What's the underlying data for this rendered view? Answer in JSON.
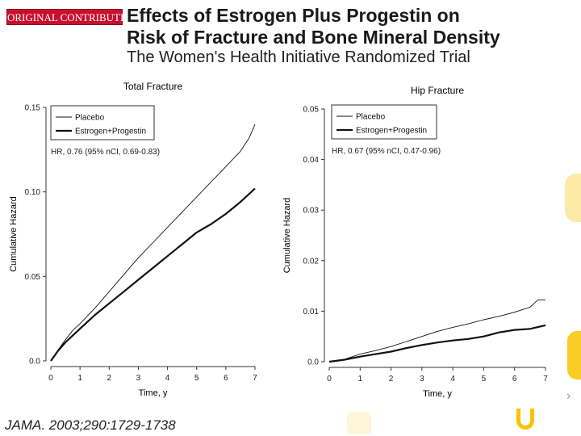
{
  "header": {
    "badge": "ORIGINAL CONTRIBUTION",
    "title_line1": "Effects of Estrogen Plus Progestin on",
    "title_line2": "Risk of Fracture and Bone Mineral Density",
    "subtitle": "The Women's Health Initiative Randomized Trial"
  },
  "citation": "JAMA. 2003;290:1729-1738",
  "nav": {
    "arrow": "›"
  },
  "colors": {
    "badge": "#c8102e",
    "accent": "#f7c400",
    "line": "#111111"
  },
  "chart_data": [
    {
      "type": "line",
      "title": "Total Fracture",
      "xlabel": "Time, y",
      "ylabel": "Cumulative Hazard",
      "xlim": [
        0,
        7
      ],
      "ylim": [
        0,
        0.15
      ],
      "xticks": [
        "0",
        "1",
        "2",
        "3",
        "4",
        "5",
        "6",
        "7"
      ],
      "yticks": [
        "0.0",
        "0.05",
        "0.10",
        "0.15"
      ],
      "legend": "top-left",
      "annotation": "HR, 0.76 (95% nCI, 0.69-0.83)",
      "series": [
        {
          "name": "Placebo",
          "x": [
            0,
            0.25,
            0.5,
            0.75,
            1,
            1.5,
            2,
            2.5,
            3,
            3.5,
            4,
            4.5,
            5,
            5.5,
            6,
            6.5,
            6.8,
            7
          ],
          "y": [
            0,
            0.0065,
            0.0125,
            0.018,
            0.022,
            0.031,
            0.041,
            0.051,
            0.061,
            0.07,
            0.079,
            0.088,
            0.097,
            0.106,
            0.115,
            0.124,
            0.132,
            0.14
          ]
        },
        {
          "name": "Estrogen+Progestin",
          "x": [
            0,
            0.25,
            0.5,
            0.75,
            1,
            1.5,
            2,
            2.5,
            3,
            3.5,
            4,
            4.5,
            5,
            5.5,
            6,
            6.5,
            7
          ],
          "y": [
            0,
            0.006,
            0.011,
            0.015,
            0.019,
            0.027,
            0.034,
            0.041,
            0.048,
            0.055,
            0.062,
            0.069,
            0.076,
            0.081,
            0.087,
            0.094,
            0.102
          ]
        }
      ]
    },
    {
      "type": "line",
      "title": "Hip Fracture",
      "xlabel": "Time, y",
      "ylabel": "Cumulative Hazard",
      "xlim": [
        0,
        7
      ],
      "ylim": [
        0,
        0.05
      ],
      "xticks": [
        "0",
        "1",
        "2",
        "3",
        "4",
        "5",
        "6",
        "7"
      ],
      "yticks": [
        "0.0",
        "0.01",
        "0.02",
        "0.03",
        "0.04",
        "0.05"
      ],
      "legend": "top-left",
      "annotation": "HR, 0.67 (95% nCI, 0.47-0.96)",
      "series": [
        {
          "name": "Placebo",
          "x": [
            0,
            0.5,
            1,
            1.5,
            2,
            2.5,
            3,
            3.5,
            4,
            4.5,
            5,
            5.5,
            6,
            6.5,
            6.75,
            7
          ],
          "y": [
            0,
            0.0005,
            0.0015,
            0.0022,
            0.003,
            0.004,
            0.005,
            0.006,
            0.0068,
            0.0075,
            0.0083,
            0.009,
            0.0098,
            0.0108,
            0.0122,
            0.0122
          ]
        },
        {
          "name": "Estrogen+Progestin",
          "x": [
            0,
            0.5,
            1,
            1.5,
            2,
            2.5,
            3,
            3.5,
            4,
            4.5,
            5,
            5.5,
            6,
            6.5,
            6.85,
            7
          ],
          "y": [
            0,
            0.0004,
            0.001,
            0.0015,
            0.002,
            0.0027,
            0.0033,
            0.0038,
            0.0042,
            0.0045,
            0.005,
            0.0058,
            0.0063,
            0.0065,
            0.007,
            0.0072
          ]
        }
      ]
    }
  ]
}
